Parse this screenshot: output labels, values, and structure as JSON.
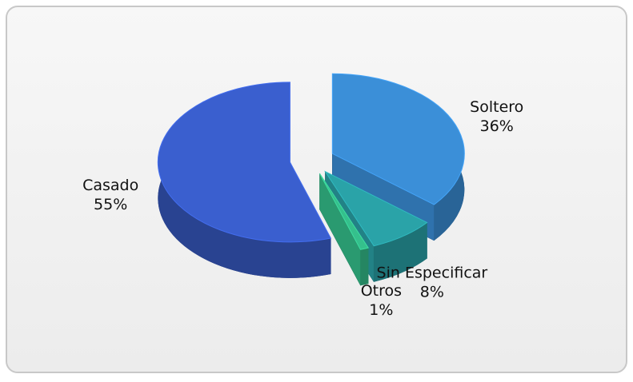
{
  "chart_data": {
    "type": "pie",
    "categories": [
      "Soltero",
      "Sin Especificar",
      "Otros",
      "Casado"
    ],
    "values": [
      36,
      8,
      1,
      55
    ],
    "value_labels": [
      "36%",
      "8%",
      "1%",
      "55%"
    ],
    "colors": [
      "#3b8fd8",
      "#2aa3a8",
      "#35c08c",
      "#3a5fcf"
    ]
  }
}
